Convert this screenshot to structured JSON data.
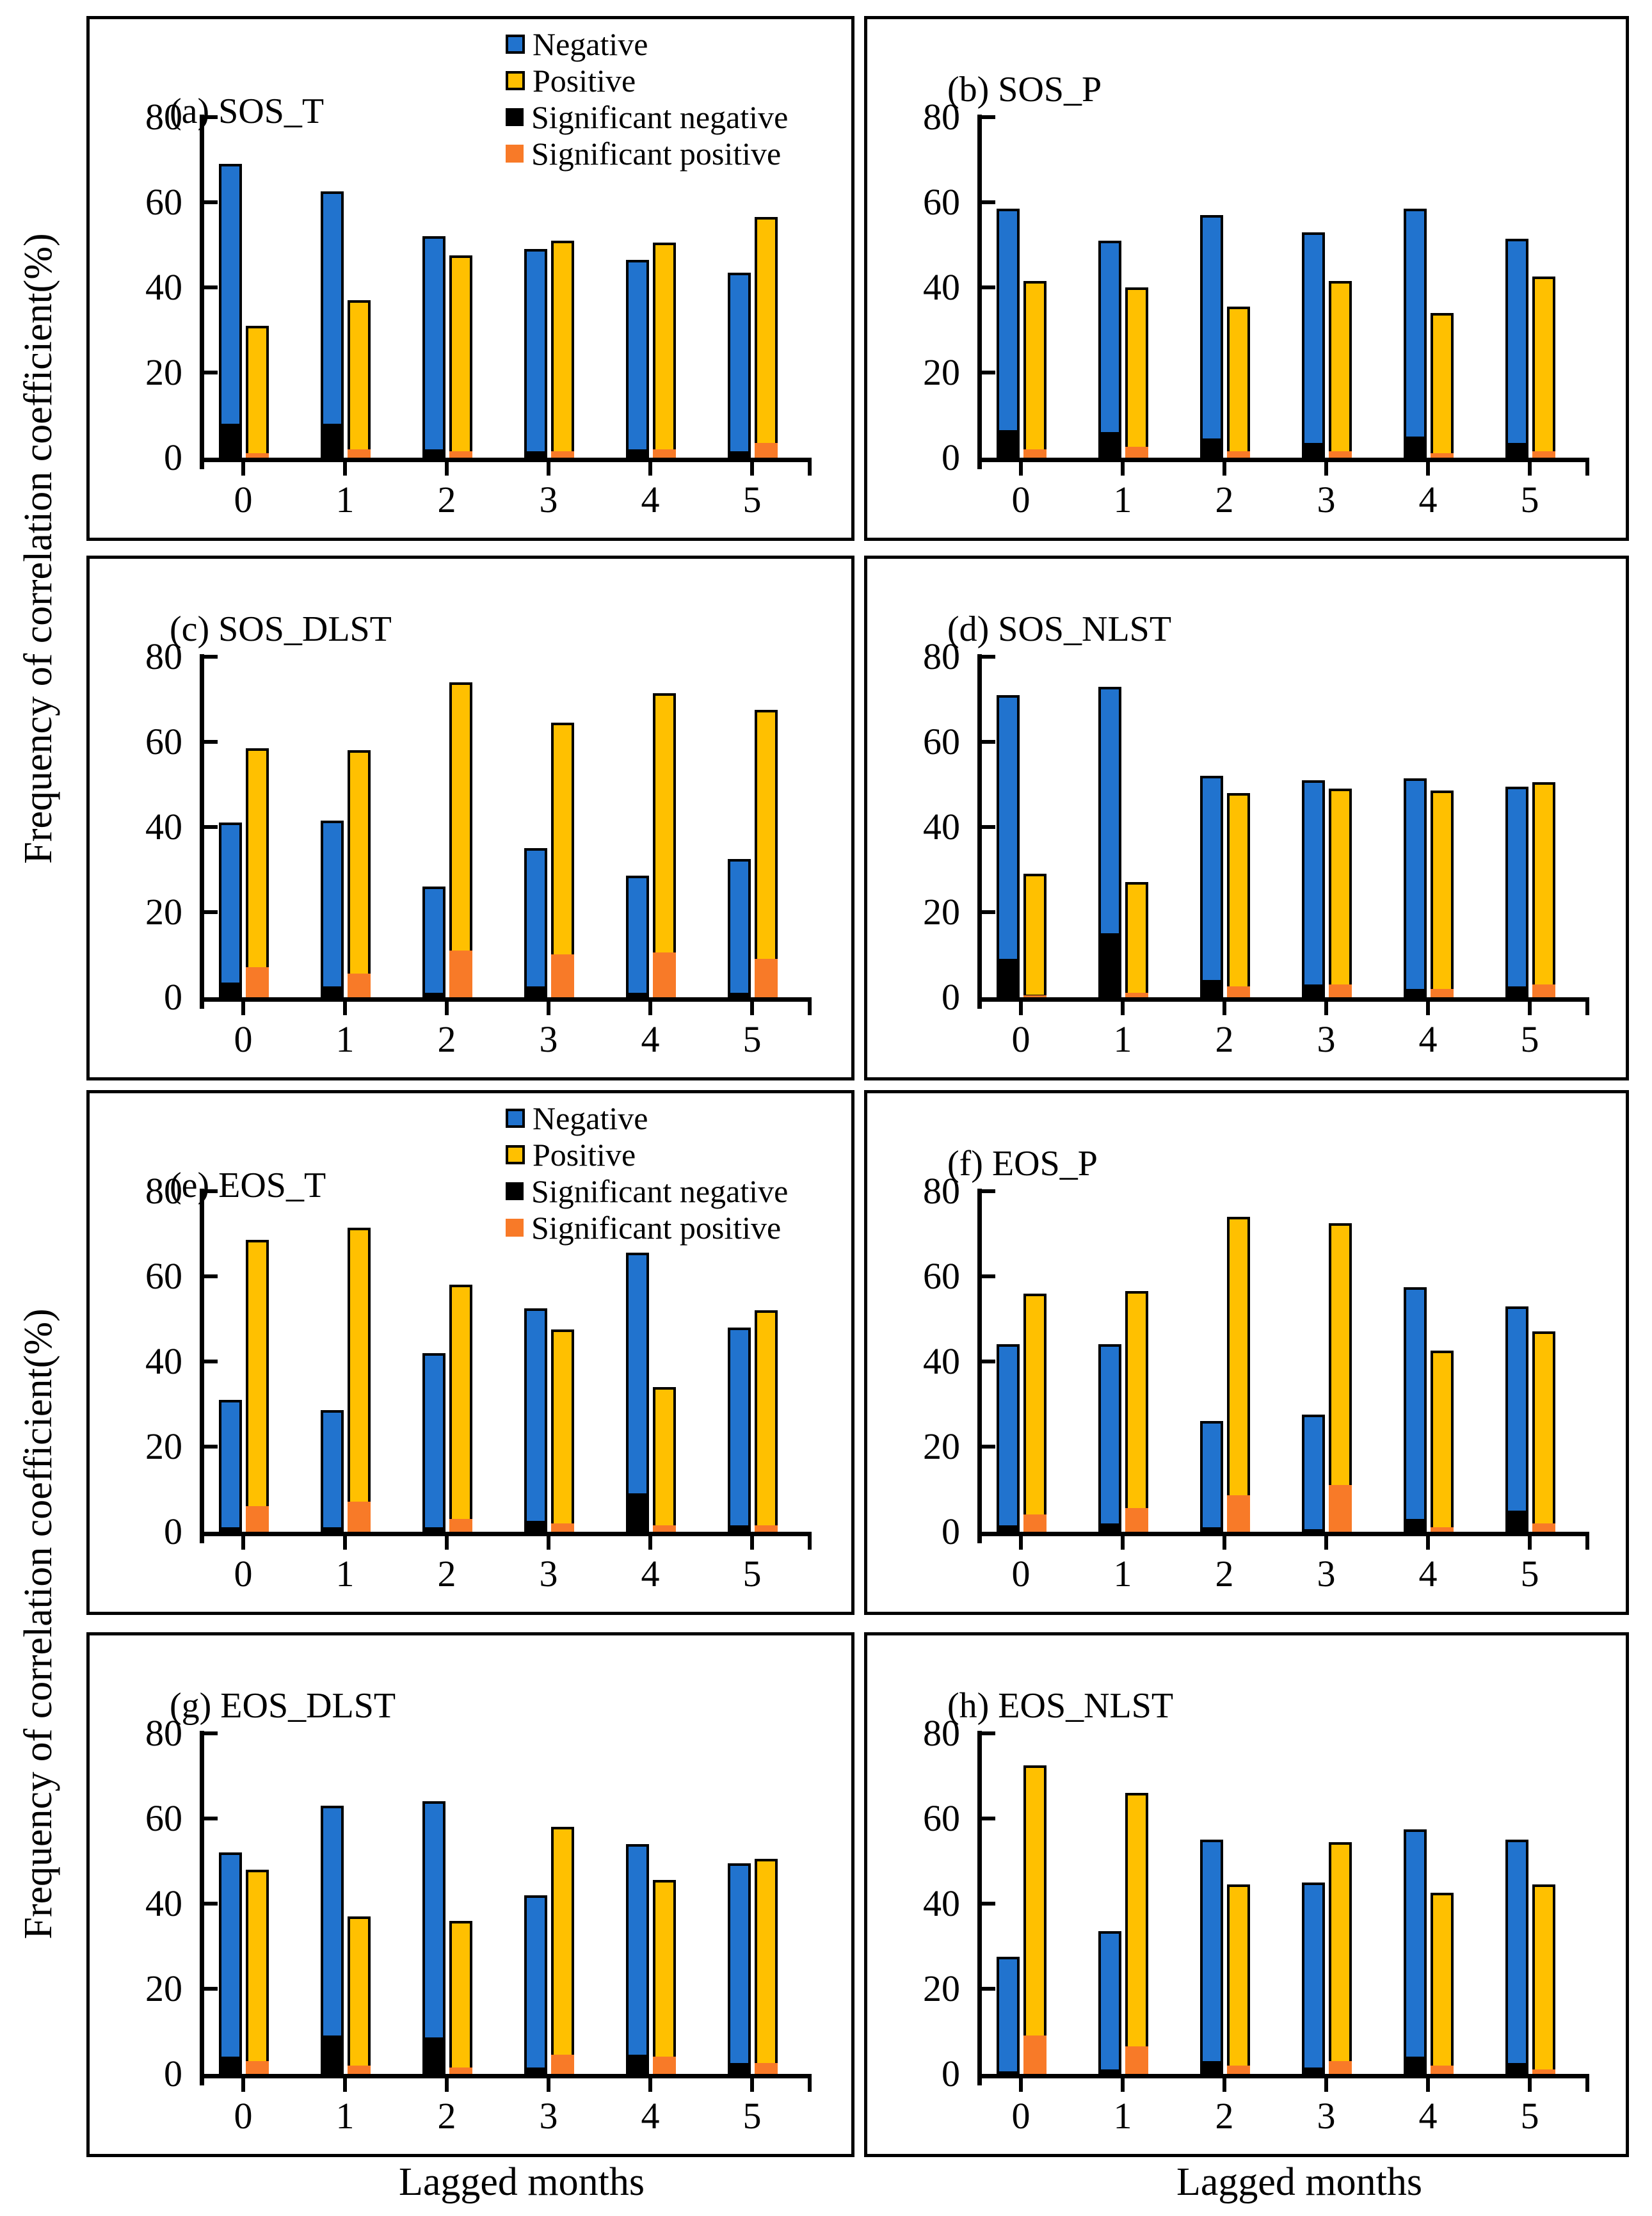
{
  "figure": {
    "ylabel": "Frequency of correlation coefficient(%)",
    "xlabel": "Lagged months",
    "legend": [
      "Negative",
      "Positive",
      "Significant negative",
      "Significant positive"
    ],
    "colors": {
      "negative": "#2173CE",
      "positive": "#FFC000",
      "significant_negative": "#000000",
      "significant_positive": "#F87A28",
      "axis": "#000000",
      "background": "#FFFFFF"
    }
  },
  "chart_data": [
    {
      "type": "bar",
      "panel": "a",
      "title": "(a) SOS_T",
      "legend_visible": true,
      "categories": [
        0,
        1,
        2,
        3,
        4,
        5
      ],
      "ylim": [
        0,
        80
      ],
      "yticks": [
        0,
        20,
        40,
        60,
        80
      ],
      "series": [
        {
          "name": "Negative",
          "values": [
            69,
            62.5,
            52,
            49,
            46.5,
            43.5
          ]
        },
        {
          "name": "Positive",
          "values": [
            31,
            37,
            47.5,
            51,
            50.5,
            56.5
          ]
        },
        {
          "name": "Significant negative",
          "values": [
            8,
            8,
            2,
            1.5,
            2,
            1.5
          ]
        },
        {
          "name": "Significant positive",
          "values": [
            1,
            2,
            1.5,
            1.5,
            2,
            3.5
          ]
        }
      ]
    },
    {
      "type": "bar",
      "panel": "b",
      "title": "(b) SOS_P",
      "legend_visible": false,
      "categories": [
        0,
        1,
        2,
        3,
        4,
        5
      ],
      "ylim": [
        0,
        80
      ],
      "yticks": [
        0,
        20,
        40,
        60,
        80
      ],
      "series": [
        {
          "name": "Negative",
          "values": [
            58.5,
            51,
            57,
            53,
            58.5,
            51.5
          ]
        },
        {
          "name": "Positive",
          "values": [
            41.5,
            40,
            35.5,
            41.5,
            34,
            42.5
          ]
        },
        {
          "name": "Significant negative",
          "values": [
            6.5,
            6,
            4.5,
            3.5,
            5,
            3.5
          ]
        },
        {
          "name": "Significant positive",
          "values": [
            2,
            2.5,
            1.5,
            1.5,
            1,
            1.5
          ]
        }
      ]
    },
    {
      "type": "bar",
      "panel": "c",
      "title": "(c) SOS_DLST",
      "legend_visible": false,
      "categories": [
        0,
        1,
        2,
        3,
        4,
        5
      ],
      "ylim": [
        0,
        80
      ],
      "yticks": [
        0,
        20,
        40,
        60,
        80
      ],
      "series": [
        {
          "name": "Negative",
          "values": [
            41,
            41.5,
            26,
            35,
            28.5,
            32.5
          ]
        },
        {
          "name": "Positive",
          "values": [
            58.5,
            58,
            74,
            64.5,
            71.5,
            67.5
          ]
        },
        {
          "name": "Significant negative",
          "values": [
            3.5,
            2.5,
            1,
            2.5,
            1,
            1
          ]
        },
        {
          "name": "Significant positive",
          "values": [
            7,
            5.5,
            11,
            10,
            10.5,
            9
          ]
        }
      ]
    },
    {
      "type": "bar",
      "panel": "d",
      "title": "(d) SOS_NLST",
      "legend_visible": false,
      "categories": [
        0,
        1,
        2,
        3,
        4,
        5
      ],
      "ylim": [
        0,
        80
      ],
      "yticks": [
        0,
        20,
        40,
        60,
        80
      ],
      "series": [
        {
          "name": "Negative",
          "values": [
            71,
            73,
            52,
            51,
            51.5,
            49.5
          ]
        },
        {
          "name": "Positive",
          "values": [
            29,
            27,
            48,
            49,
            48.5,
            50.5
          ]
        },
        {
          "name": "Significant negative",
          "values": [
            9,
            15,
            4,
            3,
            2,
            2.5
          ]
        },
        {
          "name": "Significant positive",
          "values": [
            0.5,
            1,
            2.5,
            3,
            2,
            3
          ]
        }
      ]
    },
    {
      "type": "bar",
      "panel": "e",
      "title": "(e) EOS_T",
      "legend_visible": true,
      "categories": [
        0,
        1,
        2,
        3,
        4,
        5
      ],
      "ylim": [
        0,
        80
      ],
      "yticks": [
        0,
        20,
        40,
        60,
        80
      ],
      "series": [
        {
          "name": "Negative",
          "values": [
            31,
            28.5,
            42,
            52.5,
            65.5,
            48
          ]
        },
        {
          "name": "Positive",
          "values": [
            68.5,
            71.5,
            58,
            47.5,
            34,
            52
          ]
        },
        {
          "name": "Significant negative",
          "values": [
            1,
            1,
            1,
            2.5,
            9,
            1.5
          ]
        },
        {
          "name": "Significant positive",
          "values": [
            6,
            7,
            3,
            2,
            1.5,
            1.5
          ]
        }
      ]
    },
    {
      "type": "bar",
      "panel": "f",
      "title": "(f) EOS_P",
      "legend_visible": false,
      "categories": [
        0,
        1,
        2,
        3,
        4,
        5
      ],
      "ylim": [
        0,
        80
      ],
      "yticks": [
        0,
        20,
        40,
        60,
        80
      ],
      "series": [
        {
          "name": "Negative",
          "values": [
            44,
            44,
            26,
            27.5,
            57.5,
            53
          ]
        },
        {
          "name": "Positive",
          "values": [
            56,
            56.5,
            74,
            72.5,
            42.5,
            47
          ]
        },
        {
          "name": "Significant negative",
          "values": [
            1.5,
            2,
            1,
            0.5,
            3,
            5
          ]
        },
        {
          "name": "Significant positive",
          "values": [
            4,
            5.5,
            8.5,
            11,
            1,
            2
          ]
        }
      ]
    },
    {
      "type": "bar",
      "panel": "g",
      "title": "(g) EOS_DLST",
      "legend_visible": false,
      "categories": [
        0,
        1,
        2,
        3,
        4,
        5
      ],
      "ylim": [
        0,
        80
      ],
      "yticks": [
        0,
        20,
        40,
        60,
        80
      ],
      "series": [
        {
          "name": "Negative",
          "values": [
            52,
            63,
            64,
            42,
            54,
            49.5
          ]
        },
        {
          "name": "Positive",
          "values": [
            48,
            37,
            36,
            58,
            45.5,
            50.5
          ]
        },
        {
          "name": "Significant negative",
          "values": [
            4,
            9,
            8.5,
            1.5,
            4.5,
            2.5
          ]
        },
        {
          "name": "Significant positive",
          "values": [
            3,
            2,
            1.5,
            4.5,
            4,
            2.5
          ]
        }
      ]
    },
    {
      "type": "bar",
      "panel": "h",
      "title": "(h) EOS_NLST",
      "legend_visible": false,
      "categories": [
        0,
        1,
        2,
        3,
        4,
        5
      ],
      "ylim": [
        0,
        80
      ],
      "yticks": [
        0,
        20,
        40,
        60,
        80
      ],
      "series": [
        {
          "name": "Negative",
          "values": [
            27.5,
            33.5,
            55,
            45,
            57.5,
            55
          ]
        },
        {
          "name": "Positive",
          "values": [
            72.5,
            66,
            44.5,
            54.5,
            42.5,
            44.5
          ]
        },
        {
          "name": "Significant negative",
          "values": [
            0.5,
            1,
            3,
            1.5,
            4,
            2.5
          ]
        },
        {
          "name": "Significant positive",
          "values": [
            9,
            6.5,
            2,
            3,
            2,
            1
          ]
        }
      ]
    }
  ]
}
